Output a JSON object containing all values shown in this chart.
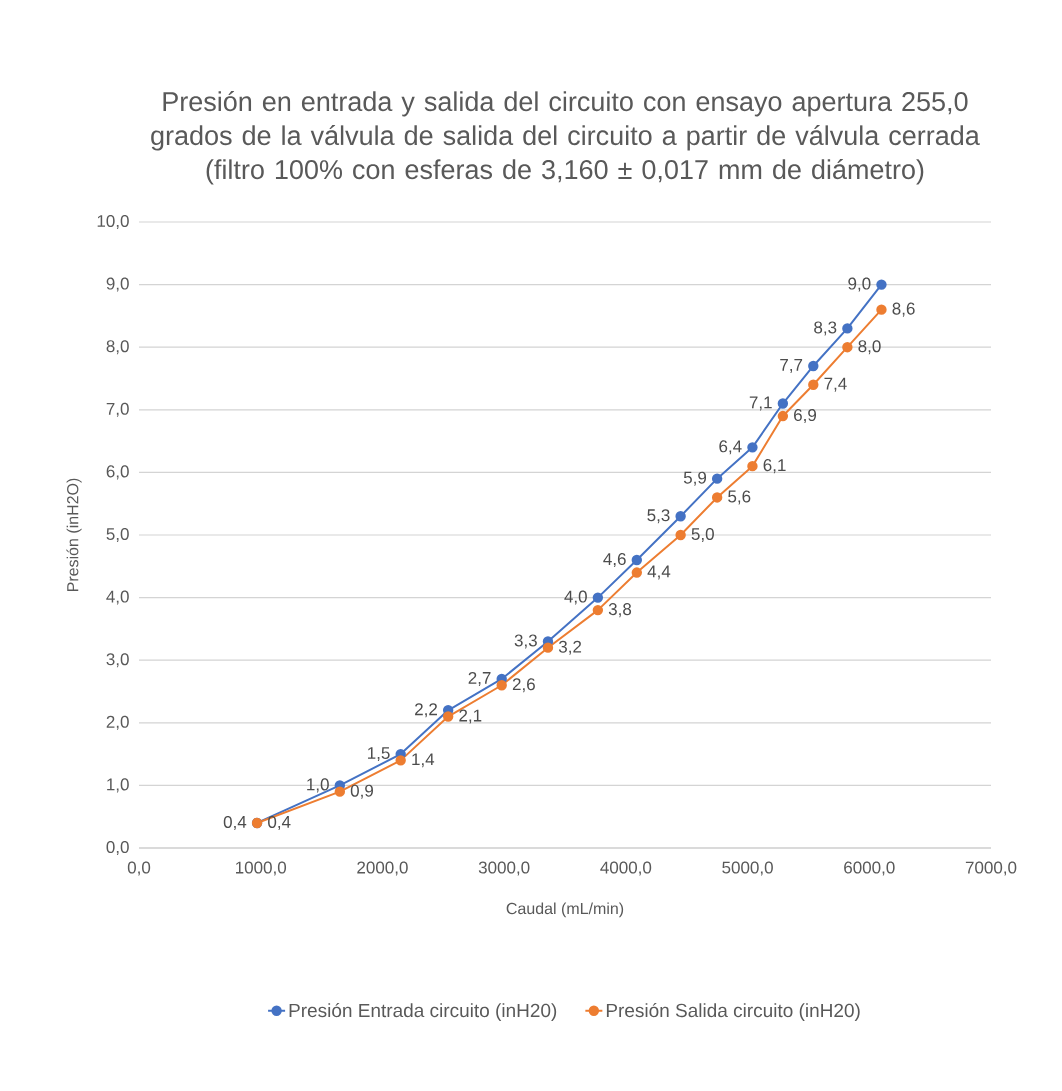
{
  "chart_data": {
    "type": "line",
    "title": "Presión en entrada y salida del circuito con ensayo apertura 255,0 grados de la válvula de salida del circuito a partir de válvula cerrada (filtro 100% con esferas de 3,160 ± 0,017 mm de diámetro)",
    "xlabel": "Caudal (mL/min)",
    "ylabel": "Presión (inH2O)",
    "x": [
      970,
      1650,
      2150,
      2540,
      2980,
      3360,
      3770,
      4090,
      4450,
      4750,
      5040,
      5290,
      5540,
      5820,
      6100
    ],
    "series": [
      {
        "name": "Presión Entrada circuito (inH20)",
        "color": "#4472c4",
        "values": [
          0.4,
          1.0,
          1.5,
          2.2,
          2.7,
          3.3,
          4.0,
          4.6,
          5.3,
          5.9,
          6.4,
          7.1,
          7.7,
          8.3,
          9.0
        ],
        "value_labels": [
          "0,4",
          "1,0",
          "1,5",
          "2,2",
          "2,7",
          "3,3",
          "4,0",
          "4,6",
          "5,3",
          "5,9",
          "6,4",
          "7,1",
          "7,7",
          "8,3",
          "9,0"
        ]
      },
      {
        "name": "Presión Salida circuito (inH20)",
        "color": "#ed7d31",
        "values": [
          0.4,
          0.9,
          1.4,
          2.1,
          2.6,
          3.2,
          3.8,
          4.4,
          5.0,
          5.6,
          6.1,
          6.9,
          7.4,
          8.0,
          8.6
        ],
        "value_labels": [
          "0,4",
          "0,9",
          "1,4",
          "2,1",
          "2,6",
          "3,2",
          "3,8",
          "4,4",
          "5,0",
          "5,6",
          "6,1",
          "6,9",
          "7,4",
          "8,0",
          "8,6"
        ]
      }
    ],
    "xlim": [
      0,
      7000
    ],
    "xticks": [
      {
        "value": 0,
        "label": "0,0"
      },
      {
        "value": 1000,
        "label": "1000,0"
      },
      {
        "value": 2000,
        "label": "2000,0"
      },
      {
        "value": 3000,
        "label": "3000,0"
      },
      {
        "value": 4000,
        "label": "4000,0"
      },
      {
        "value": 5000,
        "label": "5000,0"
      },
      {
        "value": 6000,
        "label": "6000,0"
      },
      {
        "value": 7000,
        "label": "7000,0"
      }
    ],
    "ylim": [
      0,
      10
    ],
    "yticks": [
      {
        "value": 0,
        "label": "0,0"
      },
      {
        "value": 1,
        "label": "1,0"
      },
      {
        "value": 2,
        "label": "2,0"
      },
      {
        "value": 3,
        "label": "3,0"
      },
      {
        "value": 4,
        "label": "4,0"
      },
      {
        "value": 5,
        "label": "5,0"
      },
      {
        "value": 6,
        "label": "6,0"
      },
      {
        "value": 7,
        "label": "7,0"
      },
      {
        "value": 8,
        "label": "8,0"
      },
      {
        "value": 9,
        "label": "9,0"
      },
      {
        "value": 10,
        "label": "10,0"
      }
    ],
    "grid": "y",
    "legend": "bottom",
    "marker": "circle",
    "line_style": "solid"
  }
}
